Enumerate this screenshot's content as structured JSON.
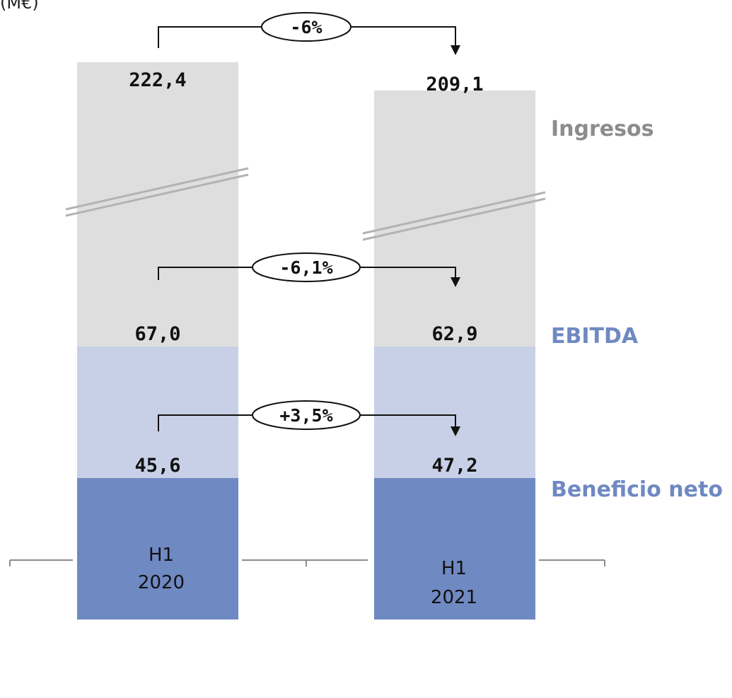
{
  "unit_label_fragment": "(M€)",
  "colors": {
    "ingresos": "#dedede",
    "ebitda": "#c7d0e6",
    "beneficio": "#6f89c2",
    "ingresos_text": "#8c8c8c",
    "ebitda_text": "#6f89c2",
    "beneficio_text": "#6f89c2",
    "axis": "#8c8c8c",
    "break_mark": "#b3b3b3",
    "value_text": "#111111",
    "bracket": "#111111"
  },
  "chart_data": {
    "type": "bar",
    "categories": [
      "H1\n2020",
      "H1\n2021"
    ],
    "category_lines": [
      [
        "H1",
        "2020"
      ],
      [
        "H1",
        "2021"
      ]
    ],
    "series": [
      {
        "name": "Ingresos",
        "values": [
          222.4,
          209.1
        ],
        "value_labels": [
          "222,4",
          "209,1"
        ]
      },
      {
        "name": "EBITDA",
        "values": [
          67.0,
          62.9
        ],
        "value_labels": [
          "67,0",
          "62,9"
        ]
      },
      {
        "name": "Beneficio neto",
        "values": [
          45.6,
          47.2
        ],
        "value_labels": [
          "45,6",
          "47,2"
        ]
      }
    ],
    "changes": [
      {
        "series": "Ingresos",
        "label": "-6%"
      },
      {
        "series": "EBITDA",
        "label": "-6,1%"
      },
      {
        "series": "Beneficio neto",
        "label": "+3,5%"
      }
    ],
    "axis_break": true,
    "grid": false,
    "legend_placement": "right"
  }
}
